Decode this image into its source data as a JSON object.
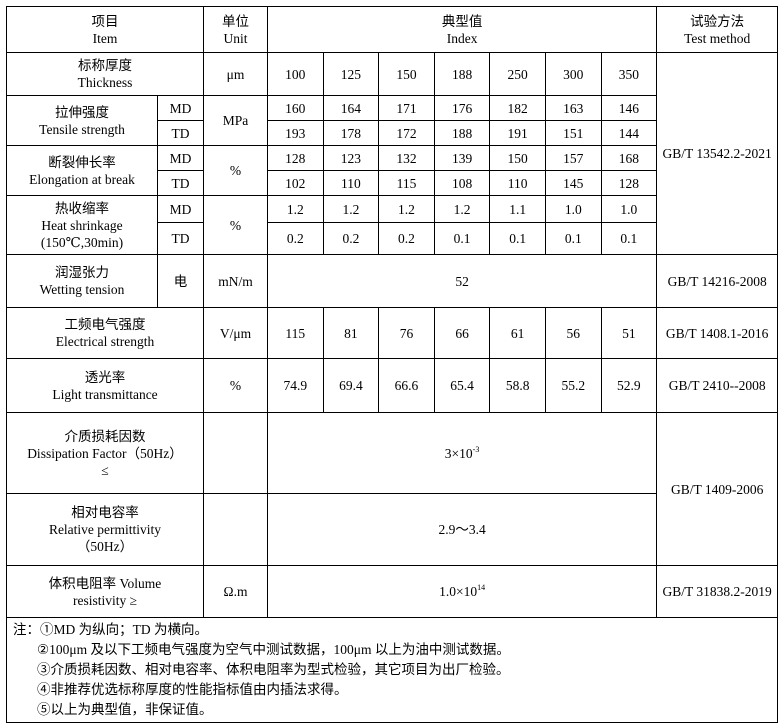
{
  "header": {
    "item_zh": "项目",
    "item_en": "Item",
    "unit_zh": "单位",
    "unit_en": "Unit",
    "index_zh": "典型值",
    "index_en": "Index",
    "method_zh": "试验方法",
    "method_en": "Test method"
  },
  "thickness": {
    "zh": "标称厚度",
    "en": "Thickness",
    "unit": "μm",
    "values": [
      "100",
      "125",
      "150",
      "188",
      "250",
      "300",
      "350"
    ]
  },
  "tensile": {
    "zh": "拉伸强度",
    "en": "Tensile strength",
    "unit": "MPa",
    "md_label": "MD",
    "td_label": "TD",
    "md": [
      "160",
      "164",
      "171",
      "176",
      "182",
      "163",
      "146"
    ],
    "td": [
      "193",
      "178",
      "172",
      "188",
      "191",
      "151",
      "144"
    ]
  },
  "elongation": {
    "zh": "断裂伸长率",
    "en": "Elongation at break",
    "unit": "%",
    "md_label": "MD",
    "td_label": "TD",
    "md": [
      "128",
      "123",
      "132",
      "139",
      "150",
      "157",
      "168"
    ],
    "td": [
      "102",
      "110",
      "115",
      "108",
      "110",
      "145",
      "128"
    ]
  },
  "shrinkage": {
    "zh": "热收缩率",
    "en": "Heat shrinkage",
    "cond": "(150℃,30min)",
    "unit": "%",
    "md_label": "MD",
    "td_label": "TD",
    "md": [
      "1.2",
      "1.2",
      "1.2",
      "1.2",
      "1.1",
      "1.0",
      "1.0"
    ],
    "td": [
      "0.2",
      "0.2",
      "0.2",
      "0.1",
      "0.1",
      "0.1",
      "0.1"
    ]
  },
  "method_mech": "GB/T 13542.2-2021",
  "wetting": {
    "zh": "润湿张力",
    "en": "Wetting tension",
    "sub": "电",
    "unit": "mN/m",
    "value": "52",
    "method": "GB/T 14216-2008"
  },
  "electrical": {
    "zh": "工频电气强度",
    "en": "Electrical strength",
    "unit": "V/μm",
    "values": [
      "115",
      "81",
      "76",
      "66",
      "61",
      "56",
      "51"
    ],
    "method": "GB/T 1408.1-2016"
  },
  "transmittance": {
    "zh": "透光率",
    "en": "Light transmittance",
    "unit": "%",
    "values": [
      "74.9",
      "69.4",
      "66.6",
      "65.4",
      "58.8",
      "55.2",
      "52.9"
    ],
    "method": "GB/T 2410--2008"
  },
  "dissipation": {
    "zh": "介质损耗因数",
    "en": "Dissipation Factor（50Hz）",
    "cmp": "≤",
    "value_base": "3×10",
    "value_exp": "-3"
  },
  "permittivity": {
    "zh": "相对电容率",
    "en": "Relative permittivity",
    "cond": "（50Hz）",
    "value": "2.9～3.4"
  },
  "method_diel": "GB/T 1409-2006",
  "resistivity": {
    "zh": "体积电阻率 Volume",
    "en": "resistivity ≥",
    "unit": "Ω.m",
    "value_base": "1.0×10",
    "value_exp": "14",
    "method": "GB/T 31838.2-2019"
  },
  "notes": [
    "注：①MD 为纵向；TD 为横向。",
    "②100μm 及以下工频电气强度为空气中测试数据，100μm 以上为油中测试数据。",
    "③介质损耗因数、相对电容率、体积电阻率为型式检验，其它项目为出厂检验。",
    "④非推荐优选标称厚度的性能指标值由内插法求得。",
    "⑤以上为典型值，非保证值。"
  ]
}
